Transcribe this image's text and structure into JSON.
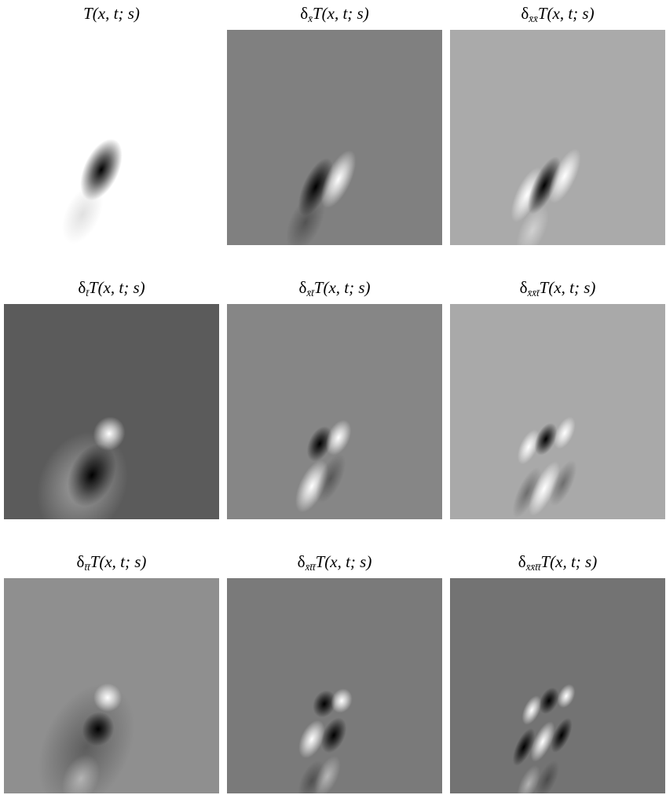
{
  "figure": {
    "panels": [
      {
        "title": {
          "body": "T(x, t; s)"
        }
      },
      {
        "title": {
          "prefix": "δ",
          "subscript": "x̄",
          "body": "T(x, t; s)"
        }
      },
      {
        "title": {
          "prefix": "δ",
          "subscript": "x̄x̄",
          "body": "T(x, t; s)"
        }
      },
      {
        "title": {
          "prefix": "δ",
          "subscript": "t̄",
          "body": "T(x, t; s)"
        }
      },
      {
        "title": {
          "prefix": "δ",
          "subscript": "x̄t̄",
          "body": "T(x, t; s)"
        }
      },
      {
        "title": {
          "prefix": "δ",
          "subscript": "x̄x̄t̄",
          "body": "T(x, t; s)"
        }
      },
      {
        "title": {
          "prefix": "δ",
          "subscript": "t̄t̄",
          "body": "T(x, t; s)"
        }
      },
      {
        "title": {
          "prefix": "δ",
          "subscript": "x̄t̄t̄",
          "body": "T(x, t; s)"
        }
      },
      {
        "title": {
          "prefix": "δ",
          "subscript": "x̄x̄t̄t̄",
          "body": "T(x, t; s)"
        }
      }
    ]
  }
}
